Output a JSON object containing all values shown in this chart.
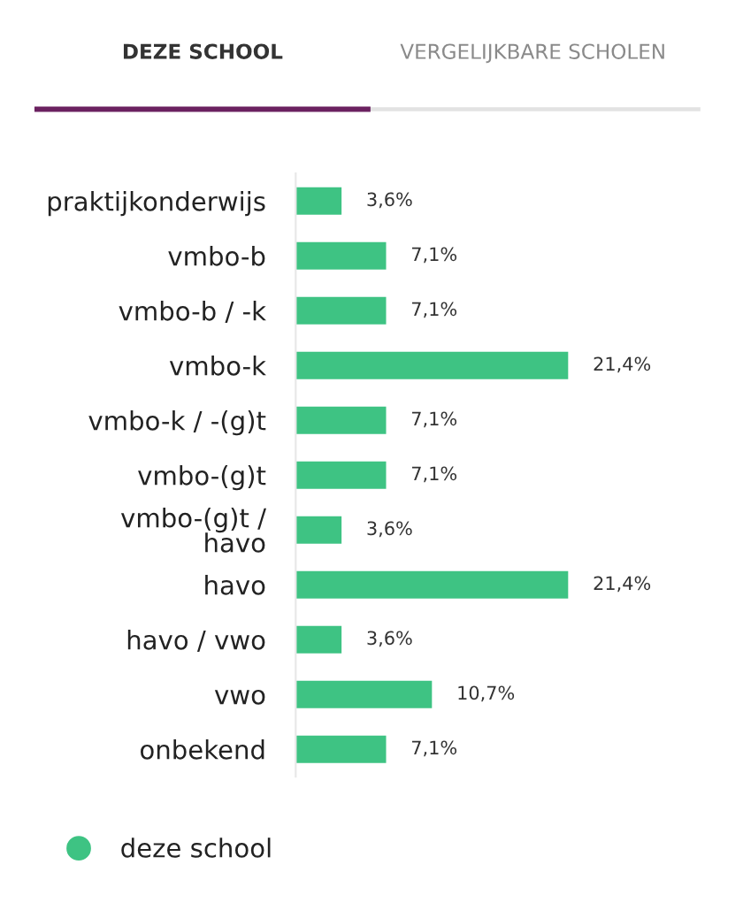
{
  "chart_data": {
    "type": "bar",
    "orientation": "horizontal",
    "annotations": [
      "DEZE SCHOOL",
      "VERGELIJKBARE SCHOLEN"
    ],
    "categories": [
      "praktijkonderwijs",
      "vmbo-b",
      "vmbo-b / -k",
      "vmbo-k",
      "vmbo-k / -(g)t",
      "vmbo-(g)t",
      "vmbo-(g)t /\nhavo",
      "havo",
      "havo / vwo",
      "vwo",
      "onbekend"
    ],
    "series": [
      {
        "name": "deze school",
        "color": "#3ec383",
        "values": [
          3.6,
          7.1,
          7.1,
          21.4,
          7.1,
          7.1,
          3.6,
          21.4,
          3.6,
          10.7,
          7.1
        ],
        "value_labels": [
          "3,6%",
          "7,1%",
          "7,1%",
          "21,4%",
          "7,1%",
          "7,1%",
          "3,6%",
          "21,4%",
          "3,6%",
          "10,7%",
          "7,1%"
        ]
      }
    ],
    "legend": "bottom left",
    "grid": false
  }
}
